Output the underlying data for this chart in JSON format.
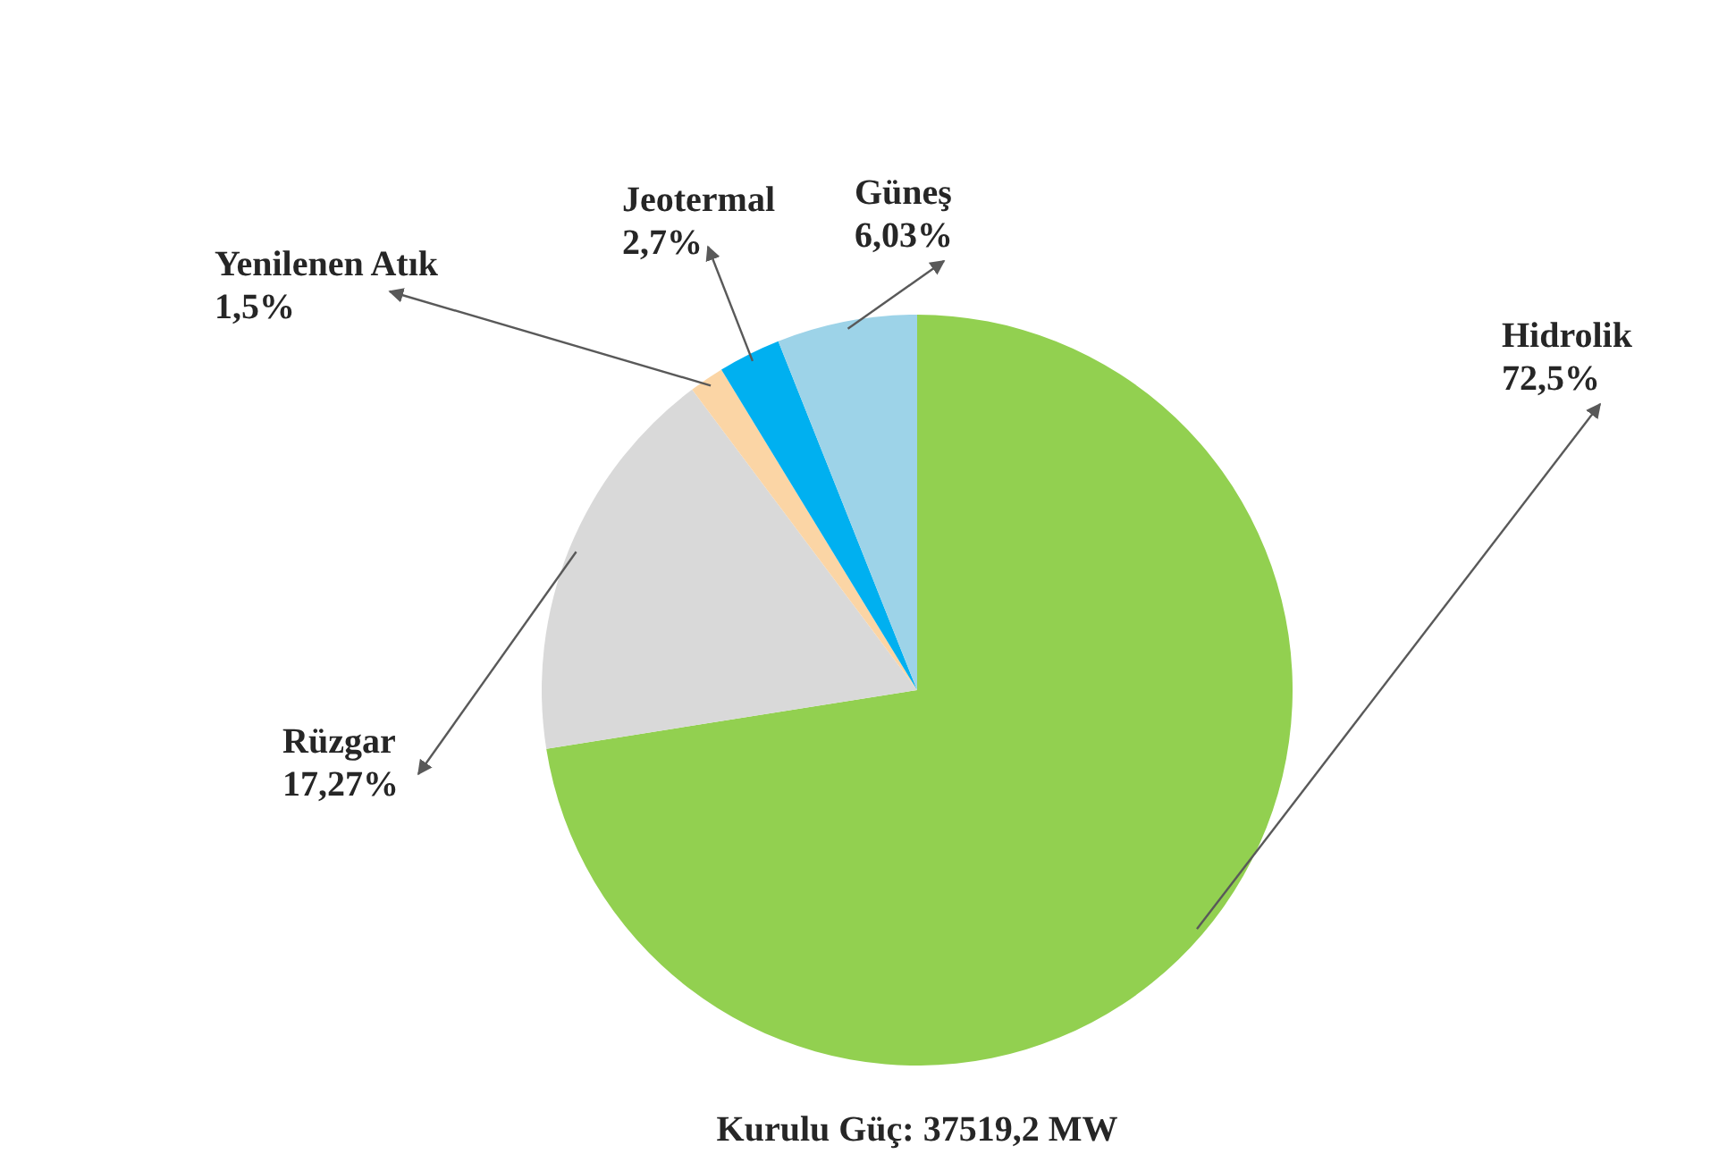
{
  "chart_data": {
    "type": "pie",
    "categories": [
      "Hidrolik",
      "Rüzgar",
      "Yenilenen Atık",
      "Jeotermal",
      "Güneş"
    ],
    "values": [
      72.5,
      17.27,
      1.5,
      2.7,
      6.03
    ],
    "value_labels": [
      "72,5%",
      "17,27%",
      "1,5%",
      "2,7%",
      "6,03%"
    ],
    "colors": [
      "#92d050",
      "#d9d9d9",
      "#fbd5a5",
      "#00b0f0",
      "#9dd3e8"
    ],
    "legend": false,
    "annotations": [
      "Kurulu Güç: 37519,2 MW"
    ]
  }
}
